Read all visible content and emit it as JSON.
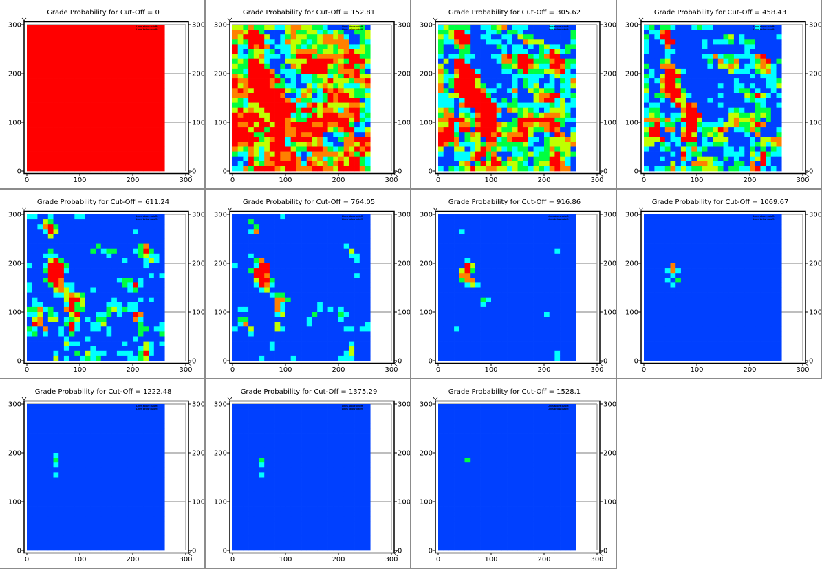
{
  "palette": {
    "B": "#0040ff",
    "C": "#00ffff",
    "G": "#00ff40",
    "Y": "#c0ff00",
    "O": "#ff8000",
    "R": "#ff0000"
  },
  "axes": {
    "xlim": [
      0,
      300
    ],
    "ylim": [
      0,
      300
    ],
    "ticks": [
      "0",
      "100",
      "200",
      "300"
    ],
    "cell_size": 10,
    "grid": true
  },
  "legend_lines": [
    "Lines above cutoff:",
    "Lines below cutoff:"
  ],
  "chart_data": [
    {
      "type": "heatmap",
      "title": "Grade Probability for Cut-Off = 0",
      "fill": "R",
      "rows": []
    },
    {
      "type": "heatmap",
      "title": "Grade Probability for Cut-Off = 152.81",
      "fill": "B",
      "rows": [
        "YYGOGGYYCCYOOYYGGCBBBBYYGB",
        "OOYRRGBBBBYOGGYYCGCYGBBGGY",
        "OYRRRRYBBCGOYYGGYOOYOCBBGY",
        "GYGRRRCCBCOYYGCGYOOOOOBBGC",
        "RCCROROBCCCYGCGYGGYGOOCCYG",
        "RCBGYYCGBCCYOOOOGYYGYORYYG",
        "YCCGYOCCCBCGRRRGOOOOORRRGG",
        "GYGRRYCBBBYYYYRRRRROYGRRRY",
        "YGGRRRGBBGBOYRRRRRYGORRGOC",
        "GGCRRRROBCCCGRRRRRGGOOORGB",
        "OYGRRRRRGBCCBCCGYYCYGRORYY",
        "ROORRRRORGBCBCCGGYRYYYGOOR",
        "RYORRRROGGCCBBYCYOYGYCCCYO",
        "OROYRRRRRRYGCYOGCROROYYGGC",
        "OOORRRRRROBBCOYBCGRORRYGGY",
        "YGCRRRRRRROCOGGCCGRORRRRBC",
        "GGCYYRRRRRRRCCORYRYYYYOOYC",
        "YRYOYYRRRRRRGRRGYOOYCORRGC",
        "RORRRYYRRRRCGCGRYRRROOORCG",
        "RRRRRRYRRROYGGRRRRRRRRYRGC",
        "ROORYRRYRRORRRROOROORRGBCB",
        "RRRYRRGRRROORRRRRRYGORRCCY",
        "RRRRGGRRRROOROORRBBCCGOBBO",
        "RRRRRGYORRCRRRRYOCBBGOORRR",
        "ROORYYYRRRCGYYOYOCCBBOOYRO",
        "OYGOYCYRRRRYGGRRROGCGOYROR",
        "GCCOYCOYROORCBCOOOOOYROGRY",
        "BBCRGCORROOROBOYOCGYOYRRGC",
        "BCBRYGOORRRROCROYOGORYRRGC",
        "CCOGRRRROYRROOORROOYRRRROG"
      ]
    },
    {
      "type": "heatmap",
      "title": "Grade Probability for Cut-Off = 305.62",
      "fill": "B",
      "rows": [
        "CYGGGGBBCCGYOBCCCBBBBCBBBB",
        "GGYRRCBBBCCGBGGCBBBBBBBBBG",
        "YCYRRRBBCCBBCCBYGGBBBBBBBG",
        "GCCORRBBBCCCBCBBOYYYBBBBBC",
        "GBBGOGBBBBBGCBCCBCBGYCCBGG",
        "GBBBGGBBBBBBCBCCCBBGCRYCGB",
        "CBCCGCCBBBCCORGRRGCGORRBBB",
        "BYBRRCBBBBBCOOGRRRGGGORRGG",
        "YBBRRRBBBBBBGGYRROYCCRROGC",
        "OGBORRRCBBBBCCBGRGGGYYORCB",
        "YCCYRRRRBBBBBBCCCCCCBCYCCC",
        "YCGRRRRYBBBBBBCBGCCBBCBGCO",
        "OBGRRRRYGBBCBBCBGCYBCCBCCY",
        "OGBRRRRROCCBBCOBBYGYGGBGCB",
        "CCYYRRRRRGBBBBCBBBYOORRCCG",
        "CCCBCRRRRRCBGBGBBBYORRCYBC",
        "CCCBORRRRRRCCGGCCCCCCGCYCC",
        "YOGBCCBRRRROBOYGYGCBCYYYCB",
        "GOOBYGCORRRCBBBGYOGYOOOYGB",
        "OORRRYGRRRRBBBGRRRRRRRGGCC",
        "YYRCOOGORRROYGGROOYOORRGBB",
        "ORRCRRBRRRRYGGYRRYGGOROBBC",
        "RRRGBGOYRRORYOOORYBBCBROBY",
        "RRROBGYYBRRCGORRRCCBGYYYOY",
        "ROGOCCCYGOOGGGGGYCBBGYYYYO",
        "YBBYYBCYROGYCGCGGBCCGOGYYB",
        "CBBCCCYRRGOBBBCCGYCGGYRGYG",
        "BBBCCCORBGRYBOGYGBGGGRRYCB",
        "BBBBYOBGRYRRGYYGCBGYYRROCB",
        "CBGCGYRYYOOYYCYGGCYGCOROOB"
      ]
    },
    {
      "type": "heatmap",
      "title": "Grade Probability for Cut-Off = 458.43",
      "fill": "B",
      "rows": [
        "CGBGGCBBBCGCCBBBBBBBBCBBBB",
        "BCCORBBBBBBBBBBBBBBBBBBBBB",
        "GBCRRBBBBBBBBBBGYBCBBBBBBC",
        "CBBCRRBBBBBCBCCCGBCGGBBBBB",
        "CBBBOBBBBBBCBBBBBBBCCBBBBB",
        "CBBBCCBBBBBBBBBBBBBCBBBBBB",
        "BBBBCBBBBBBCCOCGGCCCCORBBB",
        "BBBGYBBBBBBBGBOCGOBBCGORBG",
        "GBBOOOBBBBBBCBYYOYBCCYOYCB",
        "BCBBRRYCBBBBBBBBYCCCBGYOCB",
        "GCBYRRRBBBBBBBBBBBBBCBCCCB",
        "CBCORRGBBBBBBBBBBCBBBBBCCG",
        "GBBYRRYBBBBBBBCBBCCBCBBCCY",
        "YBBORRRGBBBBBBBBBCGGBCBBCB",
        "CBGGORRYCBBBBBCBBBBYGRYCBC",
        "CBBCBRYYBBBBCBBBBBBCGCCBBB",
        "BCCBBCRYROBBBBCBBBBBBGCBBC",
        "CGGBBBBORRBBBBBBCGCBBGGGBB",
        "CYGCBCCYRRRBBBBBYYGGYGYGBB",
        "OOOGOCGRRRYBBBCBYOYYOGBGBB",
        "CGRCGGBCRRGCCCCYYOGGYROBBB",
        "YRRBOOBYRRCGGYROBCCGOGBBBC",
        "GRRBBCBORYBGYGYBBBBCBOBBBG",
        "YYYRBCCRRRBCBYYYBBBBCBYYOO",
        "YYBGCBCBGGBCCGGCBBBBCGYCYO",
        "CBBCGBBYCOCGBBBCCBCBGBGBGC",
        "BBBBBCBRCGGBBBBCCCCBYCRGCC",
        "BBBCBBBOCBYYYGBGBCBBCYRCBB",
        "BBBBBYBCBOOOYCCBBGGBOBRCBB",
        "CBCCGOCYCGGYYYGBGGCCORCBCB"
      ]
    },
    {
      "type": "heatmap",
      "title": "Grade Probability for Cut-Off = 611.24",
      "fill": "B",
      "rows": [
        "CCBBCBBBBCCBBBBBBBBBBBBBBB",
        "BBBYG",
        "BBCORG",
        "BBBCRYBBBBBBBBBBBBBBC",
        "BBBBY",
        "",
        "BBBBBBBBBBBBBGBBBBBBBGO",
        "BBBBGBBBBBBBGBCGGBBBCGRG",
        "BBBCCCBBBBBBBBBCBBBBBGYCC",
        "BBBBYRGBBBBBBBBBBBCBBBCYC",
        "CBBCRRRGBBBBBBBBBBBBBBC",
        "BBBGRRRC",
        "BBBBRRRBBBBBBBBBBBBBBBBCBC",
        "BBBGRROBBBBBBBBBBCGGBC",
        "CBBBGROCCBBBBBBBBBGCRC",
        "CBBBBYOYCBBBCBBBBBBCG",
        "BBBBBCCYOYG",
        "BCBBBBBYRRYBBBBBCBBBBCBC",
        "BCCBBBBCRGYBBBBCCCBCC",
        "GGOCGBBORGGBBBBGYCGCC",
        "CCYBGCBBYRBBBCCGBCBBRO",
        "BYOBYYBCGYBCBGGBBBBBOC",
        "BROBBBBGRCBBCCYBBBBBBGBBBC",
        "GCBOBBCBRCBBCCBCBBBBBGGBCC",
        "CGBCBBCBGBBBBBBCBBBBBGBBBG",
        "BBBBBBBCBBBCBBBBBBBBC",
        "BBBBBBBYCCBBBBBBBBCBBBYCBC",
        "BBBBBBBCBBBBCBBBBBBBBCYC",
        "BBBBBCBBBGBYCCCBBCCCBGRC",
        "BBBBBYBCBBCGCGBBBBBCCGY"
      ]
    },
    {
      "type": "heatmap",
      "title": "Grade Probability for Cut-Off = 764.05",
      "fill": "B",
      "rows": [
        "BBBBBBBBBC",
        "BBBG",
        "BBBBG",
        "BBBCO",
        "",
        "",
        "BBBBBBBBBBBBBBBBBBBBBC",
        "BBBBBBBBBBBBBBBBBBBBBBY",
        "BBBCBBBBBBBBBBBBBBBBBBCC",
        "BBBBGOBBBBBBBBBBBBBBBBBC",
        "CBBBCRR",
        "BBBGRRR",
        "BBBBRROBBBBBBBBBBBBBBBBC",
        "BBBBYRRG",
        "BBBBCROC",
        "BBBBBCY",
        "BBBBBBBCGG",
        "BBBBBBBBOOG",
        "BBBBBBBBOCBBBBBBC",
        "BCCBBBBBOCBBBBBBCBCBC",
        "BBBBBBBBCYBBBBBGBBBBGC",
        "BGGBBBBBBBBBBBCBBBBBC",
        "BCOBBBBBYBBBBBCBBBBBBBBBBC",
        "CBBYBBBBYCBBBBBBBBBBBCCBCC",
        "BBBC",
        "",
        "BBBBBBBCBBBBBBBBBBBBBBC",
        "BBBBBBBCBBBBBBBBBBBBBBY",
        "BBBBBBBBBBBBBBBBBBBBBCY",
        "BBBBBCBBBBBCBBBBBBBBCCC"
      ]
    },
    {
      "type": "heatmap",
      "title": "Grade Probability for Cut-Off = 916.86",
      "fill": "B",
      "rows": [
        "",
        "",
        "",
        "BBBBC",
        "",
        "",
        "",
        "BBBBBBBBBBBBBBBBBBBBBBC",
        "",
        "BBBBBC",
        "BBBBBRY",
        "BBBBYRG",
        "BBBBOO",
        "BBBBGOO",
        "BBBBBCYC",
        "",
        "",
        "BBBBBBBBGC",
        "BBBBBBBBC",
        "",
        "BBBBBBBBBBBBBBBBBBBBC",
        "",
        "",
        "BBBC",
        "",
        "",
        "",
        "",
        "BBBBBBBBBBBBBBBBBBBBBBC",
        "BBBBBBBBBBBBBBBBBBBBBBC"
      ]
    },
    {
      "type": "heatmap",
      "title": "Grade Probability for Cut-Off = 1069.67",
      "fill": "B",
      "rows": [
        "",
        "",
        "",
        "",
        "",
        "",
        "",
        "",
        "",
        "",
        "BBBBBO",
        "BBBBCOC",
        "BBBBBC",
        "BBBBCBG",
        "BBBBBC"
      ]
    },
    {
      "type": "heatmap",
      "title": "Grade Probability for Cut-Off = 1222.48",
      "fill": "B",
      "rows": [
        "",
        "",
        "",
        "",
        "",
        "",
        "",
        "",
        "",
        "",
        "BBBBBC",
        "BBBBBG",
        "BBBBBC",
        "",
        "BBBBBC"
      ]
    },
    {
      "type": "heatmap",
      "title": "Grade Probability for Cut-Off = 1375.29",
      "fill": "B",
      "rows": [
        "",
        "",
        "",
        "",
        "",
        "",
        "",
        "",
        "",
        "",
        "",
        "BBBBBG",
        "BBBBBC",
        "",
        "BBBBBC"
      ]
    },
    {
      "type": "heatmap",
      "title": "Grade Probability for Cut-Off = 1528.1",
      "fill": "B",
      "rows": [
        "",
        "",
        "",
        "",
        "",
        "",
        "",
        "",
        "",
        "",
        "",
        "BBBBBG"
      ]
    }
  ]
}
